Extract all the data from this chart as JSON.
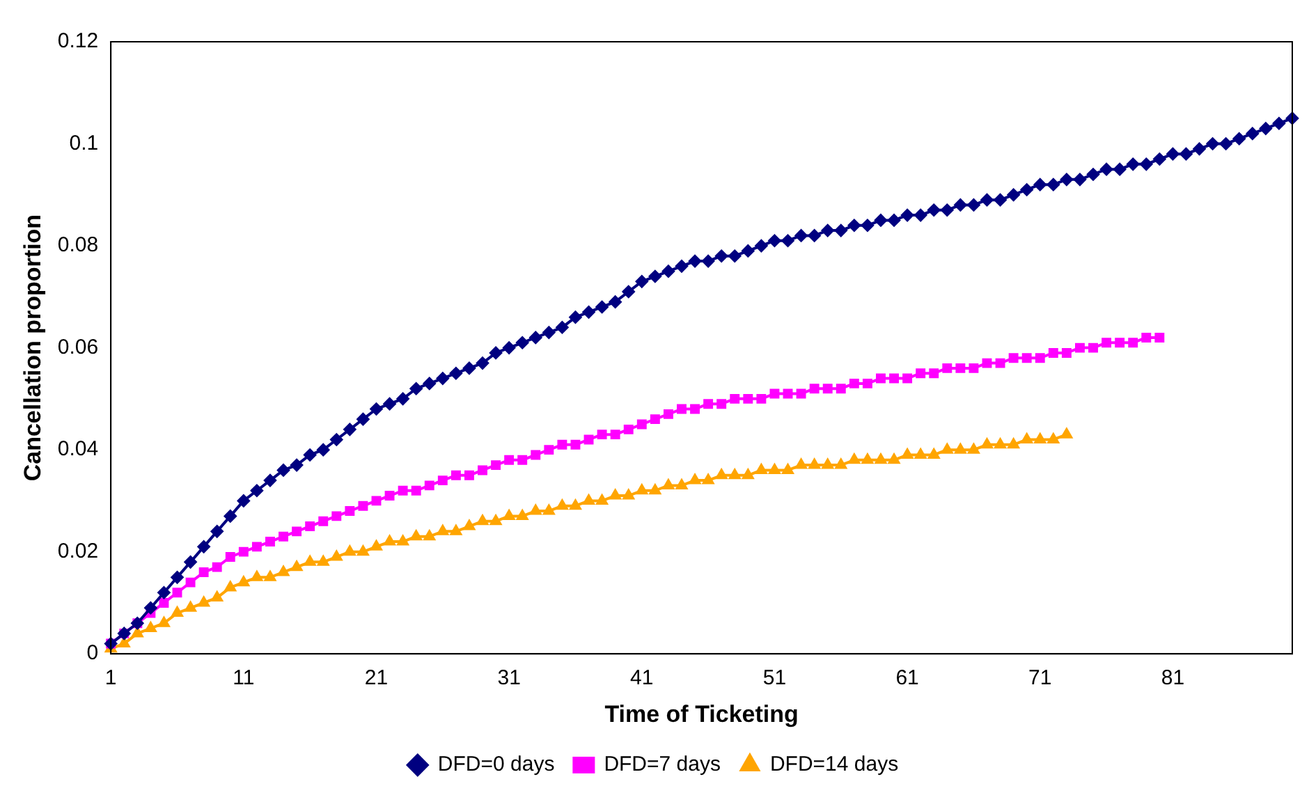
{
  "chart_data": {
    "type": "line",
    "xlabel": "Time of Ticketing",
    "ylabel": "Cancellation proportion",
    "categories": [
      "1",
      null,
      null,
      null,
      null,
      null,
      null,
      null,
      null,
      null,
      "11",
      null,
      null,
      null,
      null,
      null,
      null,
      null,
      null,
      null,
      "21",
      null,
      null,
      null,
      null,
      null,
      null,
      null,
      null,
      null,
      "31",
      null,
      null,
      null,
      null,
      null,
      null,
      null,
      null,
      null,
      "41",
      null,
      null,
      null,
      null,
      null,
      null,
      null,
      null,
      null,
      "51",
      null,
      null,
      null,
      null,
      null,
      null,
      null,
      null,
      null,
      "61",
      null,
      null,
      null,
      null,
      null,
      null,
      null,
      null,
      null,
      "71",
      null,
      null,
      null,
      null,
      null,
      null,
      null,
      null,
      null,
      "81",
      null,
      null,
      null,
      null,
      null,
      null,
      null,
      null,
      null
    ],
    "series": [
      {
        "name": "DFD=0 days",
        "color": "#000080",
        "marker": "diamond",
        "values": [
          0.002,
          0.004,
          0.006,
          0.009,
          0.012,
          0.015,
          0.018,
          0.021,
          0.024,
          0.027,
          0.03,
          0.032,
          0.034,
          0.036,
          0.037,
          0.039,
          0.04,
          0.042,
          0.044,
          0.046,
          0.048,
          0.049,
          0.05,
          0.052,
          0.053,
          0.054,
          0.055,
          0.056,
          0.057,
          0.059,
          0.06,
          0.061,
          0.062,
          0.063,
          0.064,
          0.066,
          0.067,
          0.068,
          0.069,
          0.071,
          0.073,
          0.074,
          0.075,
          0.076,
          0.077,
          0.077,
          0.078,
          0.078,
          0.079,
          0.08,
          0.081,
          0.081,
          0.082,
          0.082,
          0.083,
          0.083,
          0.084,
          0.084,
          0.085,
          0.085,
          0.086,
          0.086,
          0.087,
          0.087,
          0.088,
          0.088,
          0.089,
          0.089,
          0.09,
          0.091,
          0.092,
          0.092,
          0.093,
          0.093,
          0.094,
          0.095,
          0.095,
          0.096,
          0.096,
          0.097,
          0.098,
          0.098,
          0.099,
          0.1,
          0.1,
          0.101,
          0.102,
          0.103,
          0.104,
          0.105
        ]
      },
      {
        "name": "DFD=7 days",
        "color": "#ff00ff",
        "marker": "square",
        "values": [
          0.002,
          0.004,
          0.006,
          0.008,
          0.01,
          0.012,
          0.014,
          0.016,
          0.017,
          0.019,
          0.02,
          0.021,
          0.022,
          0.023,
          0.024,
          0.025,
          0.026,
          0.027,
          0.028,
          0.029,
          0.03,
          0.031,
          0.032,
          0.032,
          0.033,
          0.034,
          0.035,
          0.035,
          0.036,
          0.037,
          0.038,
          0.038,
          0.039,
          0.04,
          0.041,
          0.041,
          0.042,
          0.043,
          0.043,
          0.044,
          0.045,
          0.046,
          0.047,
          0.048,
          0.048,
          0.049,
          0.049,
          0.05,
          0.05,
          0.05,
          0.051,
          0.051,
          0.051,
          0.052,
          0.052,
          0.052,
          0.053,
          0.053,
          0.054,
          0.054,
          0.054,
          0.055,
          0.055,
          0.056,
          0.056,
          0.056,
          0.057,
          0.057,
          0.058,
          0.058,
          0.058,
          0.059,
          0.059,
          0.06,
          0.06,
          0.061,
          0.061,
          0.061,
          0.062,
          0.062,
          null,
          null,
          null,
          null,
          null,
          null,
          null,
          null,
          null,
          null
        ]
      },
      {
        "name": "DFD=14 days",
        "color": "#ffa500",
        "marker": "triangle",
        "values": [
          0.001,
          0.002,
          0.004,
          0.005,
          0.006,
          0.008,
          0.009,
          0.01,
          0.011,
          0.013,
          0.014,
          0.015,
          0.015,
          0.016,
          0.017,
          0.018,
          0.018,
          0.019,
          0.02,
          0.02,
          0.021,
          0.022,
          0.022,
          0.023,
          0.023,
          0.024,
          0.024,
          0.025,
          0.026,
          0.026,
          0.027,
          0.027,
          0.028,
          0.028,
          0.029,
          0.029,
          0.03,
          0.03,
          0.031,
          0.031,
          0.032,
          0.032,
          0.033,
          0.033,
          0.034,
          0.034,
          0.035,
          0.035,
          0.035,
          0.036,
          0.036,
          0.036,
          0.037,
          0.037,
          0.037,
          0.037,
          0.038,
          0.038,
          0.038,
          0.038,
          0.039,
          0.039,
          0.039,
          0.04,
          0.04,
          0.04,
          0.041,
          0.041,
          0.041,
          0.042,
          0.042,
          0.042,
          0.043,
          null,
          null,
          null,
          null,
          null,
          null,
          null,
          null,
          null,
          null,
          null,
          null,
          null,
          null,
          null,
          null,
          null
        ]
      }
    ],
    "ylim": [
      0,
      0.12
    ],
    "yticks": [
      0,
      0.02,
      0.04,
      0.06,
      0.08,
      0.1,
      0.12
    ],
    "grid": false,
    "legend": "bottom",
    "line_style": "solid"
  }
}
